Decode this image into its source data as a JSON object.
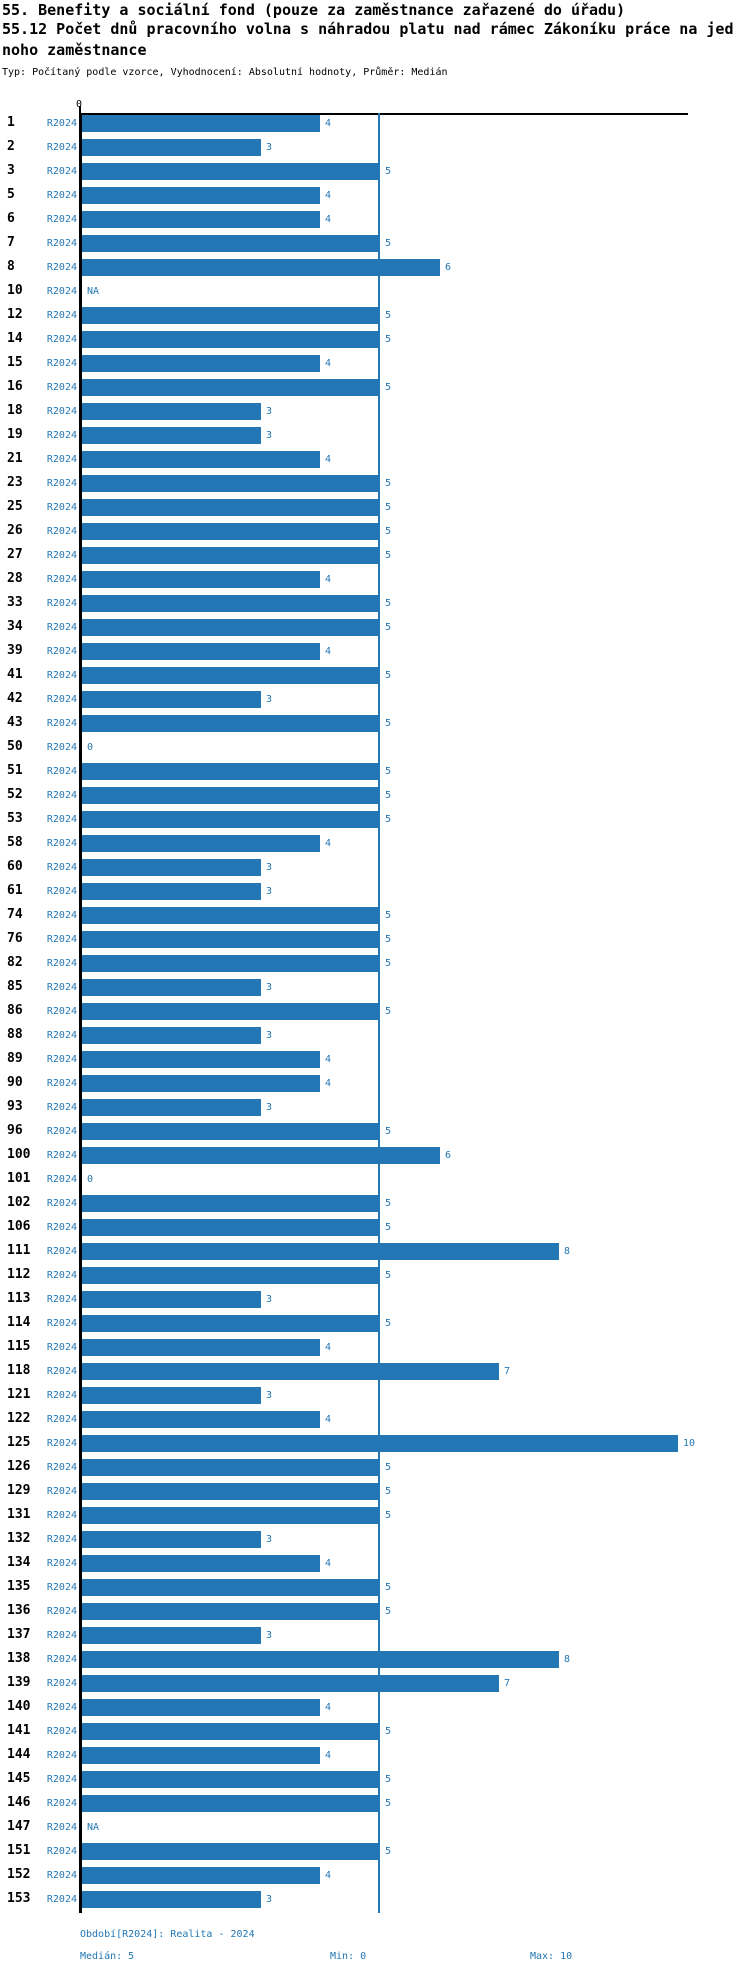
{
  "header": {
    "title_line1": "55. Benefity a sociální fond (pouze za zaměstnance zařazené do úřadu)",
    "title_line2": "55.12 Počet dnů pracovního volna s náhradou platu nad rámec Zákoníku práce na jed",
    "title_line3": "noho zaměstnance",
    "subtitle": "Typ: Počítaný podle vzorce, Vyhodnocení: Absolutní hodnoty, Průměr: Medián"
  },
  "chart_data": {
    "type": "bar",
    "orientation": "horizontal",
    "title": "55.12 Počet dnů pracovního volna s náhradou platu nad rámec Zákoníku práce na jednoho zaměstnance",
    "x_axis": {
      "zero_label": "0",
      "xlim": [
        0,
        10
      ],
      "median_line_value": 5,
      "grid": false
    },
    "bar_color": "#2277b4",
    "period_label": "R2024",
    "rows": [
      {
        "id": "1",
        "value": 4
      },
      {
        "id": "2",
        "value": 3
      },
      {
        "id": "3",
        "value": 5
      },
      {
        "id": "5",
        "value": 4
      },
      {
        "id": "6",
        "value": 4
      },
      {
        "id": "7",
        "value": 5
      },
      {
        "id": "8",
        "value": 6
      },
      {
        "id": "10",
        "value": "NA"
      },
      {
        "id": "12",
        "value": 5
      },
      {
        "id": "14",
        "value": 5
      },
      {
        "id": "15",
        "value": 4
      },
      {
        "id": "16",
        "value": 5
      },
      {
        "id": "18",
        "value": 3
      },
      {
        "id": "19",
        "value": 3
      },
      {
        "id": "21",
        "value": 4
      },
      {
        "id": "23",
        "value": 5
      },
      {
        "id": "25",
        "value": 5
      },
      {
        "id": "26",
        "value": 5
      },
      {
        "id": "27",
        "value": 5
      },
      {
        "id": "28",
        "value": 4
      },
      {
        "id": "33",
        "value": 5
      },
      {
        "id": "34",
        "value": 5
      },
      {
        "id": "39",
        "value": 4
      },
      {
        "id": "41",
        "value": 5
      },
      {
        "id": "42",
        "value": 3
      },
      {
        "id": "43",
        "value": 5
      },
      {
        "id": "50",
        "value": 0
      },
      {
        "id": "51",
        "value": 5
      },
      {
        "id": "52",
        "value": 5
      },
      {
        "id": "53",
        "value": 5
      },
      {
        "id": "58",
        "value": 4
      },
      {
        "id": "60",
        "value": 3
      },
      {
        "id": "61",
        "value": 3
      },
      {
        "id": "74",
        "value": 5
      },
      {
        "id": "76",
        "value": 5
      },
      {
        "id": "82",
        "value": 5
      },
      {
        "id": "85",
        "value": 3
      },
      {
        "id": "86",
        "value": 5
      },
      {
        "id": "88",
        "value": 3
      },
      {
        "id": "89",
        "value": 4
      },
      {
        "id": "90",
        "value": 4
      },
      {
        "id": "93",
        "value": 3
      },
      {
        "id": "96",
        "value": 5
      },
      {
        "id": "100",
        "value": 6
      },
      {
        "id": "101",
        "value": 0
      },
      {
        "id": "102",
        "value": 5
      },
      {
        "id": "106",
        "value": 5
      },
      {
        "id": "111",
        "value": 8
      },
      {
        "id": "112",
        "value": 5
      },
      {
        "id": "113",
        "value": 3
      },
      {
        "id": "114",
        "value": 5
      },
      {
        "id": "115",
        "value": 4
      },
      {
        "id": "118",
        "value": 7
      },
      {
        "id": "121",
        "value": 3
      },
      {
        "id": "122",
        "value": 4
      },
      {
        "id": "125",
        "value": 10
      },
      {
        "id": "126",
        "value": 5
      },
      {
        "id": "129",
        "value": 5
      },
      {
        "id": "131",
        "value": 5
      },
      {
        "id": "132",
        "value": 3
      },
      {
        "id": "134",
        "value": 4
      },
      {
        "id": "135",
        "value": 5
      },
      {
        "id": "136",
        "value": 5
      },
      {
        "id": "137",
        "value": 3
      },
      {
        "id": "138",
        "value": 8
      },
      {
        "id": "139",
        "value": 7
      },
      {
        "id": "140",
        "value": 4
      },
      {
        "id": "141",
        "value": 5
      },
      {
        "id": "144",
        "value": 4
      },
      {
        "id": "145",
        "value": 5
      },
      {
        "id": "146",
        "value": 5
      },
      {
        "id": "147",
        "value": "NA"
      },
      {
        "id": "151",
        "value": 5
      },
      {
        "id": "152",
        "value": 4
      },
      {
        "id": "153",
        "value": 3
      }
    ]
  },
  "footer": {
    "period_note": "Období[R2024]: Realita - 2024",
    "median_label": "Medián: 5",
    "min_label": "Min: 0",
    "max_label": "Max: 10"
  }
}
